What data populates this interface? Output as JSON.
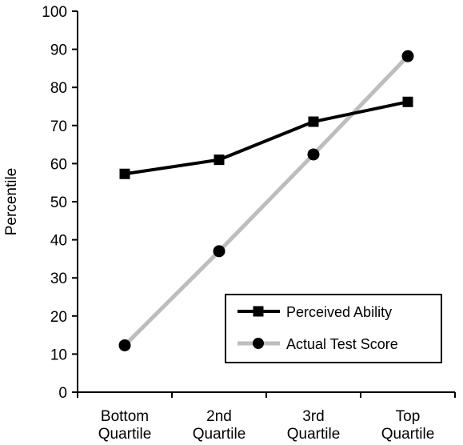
{
  "chart_data": {
    "type": "line",
    "title": "",
    "xlabel": "",
    "ylabel": "Percentile",
    "ylim": [
      0,
      100
    ],
    "yticks": [
      0,
      10,
      20,
      30,
      40,
      50,
      60,
      70,
      80,
      90,
      100
    ],
    "categories": [
      [
        "Bottom",
        "Quartile"
      ],
      [
        "2nd",
        "Quartile"
      ],
      [
        "3rd",
        "Quartile"
      ],
      [
        "Top",
        "Quartile"
      ]
    ],
    "series": [
      {
        "name": "Perceived Ability",
        "values": [
          57.3,
          61,
          71,
          76.2
        ],
        "marker": "square",
        "color": "#000000"
      },
      {
        "name": "Actual Test Score",
        "values": [
          12.3,
          37,
          62.4,
          88.2
        ],
        "marker": "circle",
        "color": "#bdbdbd"
      }
    ],
    "grid": false,
    "legend_position": "bottom-right"
  }
}
